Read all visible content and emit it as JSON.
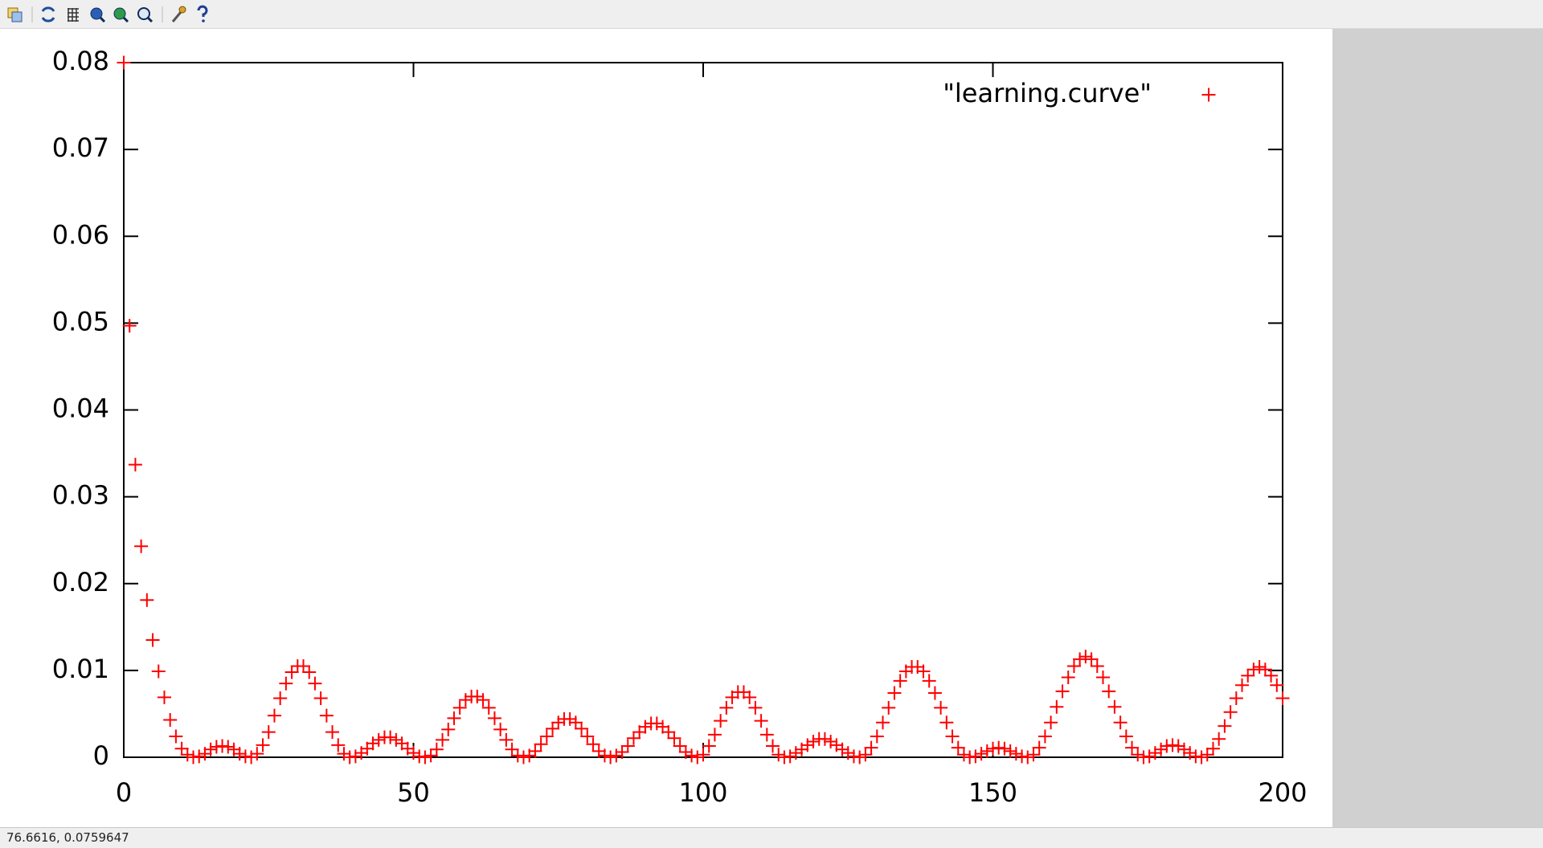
{
  "status_bar": {
    "coordinates": "76.6616, 0.0759647"
  },
  "chart_data": {
    "type": "scatter",
    "x": [
      0,
      1,
      2,
      3,
      4,
      5,
      6,
      7,
      8,
      9,
      10,
      11,
      12,
      13,
      14,
      15,
      16,
      17,
      18,
      19,
      20,
      21,
      22,
      23,
      24,
      25,
      26,
      27,
      28,
      29,
      30,
      31,
      32,
      33,
      34,
      35,
      36,
      37,
      38,
      39,
      40,
      41,
      42,
      43,
      44,
      45,
      46,
      47,
      48,
      49,
      50,
      51,
      52,
      53,
      54,
      55,
      56,
      57,
      58,
      59,
      60,
      61,
      62,
      63,
      64,
      65,
      66,
      67,
      68,
      69,
      70,
      71,
      72,
      73,
      74,
      75,
      76,
      77,
      78,
      79,
      80,
      81,
      82,
      83,
      84,
      85,
      86,
      87,
      88,
      89,
      90,
      91,
      92,
      93,
      94,
      95,
      96,
      97,
      98,
      99,
      100,
      101,
      102,
      103,
      104,
      105,
      106,
      107,
      108,
      109,
      110,
      111,
      112,
      113,
      114,
      115,
      116,
      117,
      118,
      119,
      120,
      121,
      122,
      123,
      124,
      125,
      126,
      127,
      128,
      129,
      130,
      131,
      132,
      133,
      134,
      135,
      136,
      137,
      138,
      139,
      140,
      141,
      142,
      143,
      144,
      145,
      146,
      147,
      148,
      149,
      150,
      151,
      152,
      153,
      154,
      155,
      156,
      157,
      158,
      159,
      160,
      161,
      162,
      163,
      164,
      165,
      166,
      167,
      168,
      169,
      170,
      171,
      172,
      173,
      174,
      175,
      176,
      177,
      178,
      179,
      180,
      181,
      182,
      183,
      184,
      185,
      186,
      187,
      188,
      189,
      190,
      191,
      192,
      193,
      194,
      195,
      196,
      197,
      198,
      199,
      200
    ],
    "series": [
      {
        "name": "\"learning.curve\"",
        "color": "#ff0000",
        "values": [
          0.08,
          0.0497,
          0.0337,
          0.0243,
          0.0181,
          0.0135,
          0.0099,
          0.0069,
          0.0043,
          0.0024,
          0.001,
          0.0003,
          0,
          0.0001,
          0.0004,
          0.0009,
          0.0012,
          0.0013,
          0.0012,
          0.0009,
          0.0004,
          0.0001,
          0,
          0.0004,
          0.0014,
          0.0029,
          0.0048,
          0.0068,
          0.0085,
          0.0098,
          0.0105,
          0.0105,
          0.0098,
          0.0085,
          0.0068,
          0.0048,
          0.0029,
          0.0014,
          0.0004,
          0,
          0.0001,
          0.0005,
          0.001,
          0.0016,
          0.002,
          0.0023,
          0.0023,
          0.002,
          0.0016,
          0.001,
          0.0005,
          0.0001,
          0,
          0.0002,
          0.0009,
          0.002,
          0.0032,
          0.0045,
          0.0057,
          0.0066,
          0.007,
          0.007,
          0.0066,
          0.0057,
          0.0045,
          0.0032,
          0.002,
          0.0009,
          0.0002,
          0,
          0.0002,
          0.0007,
          0.0015,
          0.0024,
          0.0033,
          0.004,
          0.0044,
          0.0044,
          0.004,
          0.0033,
          0.0024,
          0.0015,
          0.0007,
          0.0002,
          0,
          0.0002,
          0.0006,
          0.0013,
          0.0022,
          0.0029,
          0.0035,
          0.0039,
          0.0039,
          0.0035,
          0.0029,
          0.0022,
          0.0013,
          0.0006,
          0.0002,
          0,
          0.0003,
          0.0013,
          0.0026,
          0.0042,
          0.0057,
          0.0069,
          0.0075,
          0.0075,
          0.0069,
          0.0057,
          0.0042,
          0.0026,
          0.0013,
          0.0003,
          0,
          0.0001,
          0.0005,
          0.0009,
          0.0014,
          0.0018,
          0.0021,
          0.0021,
          0.0018,
          0.0014,
          0.0009,
          0.0005,
          0.0001,
          0,
          0.0003,
          0.0011,
          0.0024,
          0.004,
          0.0057,
          0.0074,
          0.0088,
          0.0099,
          0.0104,
          0.0104,
          0.0099,
          0.0088,
          0.0074,
          0.0057,
          0.004,
          0.0024,
          0.0011,
          0.0003,
          0,
          0.0001,
          0.0004,
          0.0007,
          0.001,
          0.0011,
          0.001,
          0.0007,
          0.0004,
          0.0001,
          0,
          0.0003,
          0.0011,
          0.0024,
          0.004,
          0.0058,
          0.0076,
          0.0092,
          0.0105,
          0.0113,
          0.0116,
          0.0113,
          0.0105,
          0.0092,
          0.0076,
          0.0058,
          0.004,
          0.0024,
          0.0011,
          0.0003,
          0,
          0.0001,
          0.0005,
          0.0009,
          0.0013,
          0.0014,
          0.0013,
          0.0009,
          0.0005,
          0.0001,
          0,
          0.0003,
          0.001,
          0.0021,
          0.0036,
          0.0052,
          0.0068,
          0.0083,
          0.0094,
          0.0101,
          0.0104,
          0.0101,
          0.0094,
          0.0083,
          0.0068
        ]
      }
    ],
    "xlim": [
      0,
      200
    ],
    "ylim": [
      0,
      0.08
    ],
    "xticks": [
      0,
      50,
      100,
      150,
      200
    ],
    "yticks": [
      0,
      0.01,
      0.02,
      0.03,
      0.04,
      0.05,
      0.06,
      0.07,
      0.08
    ],
    "legend": "top-right"
  }
}
